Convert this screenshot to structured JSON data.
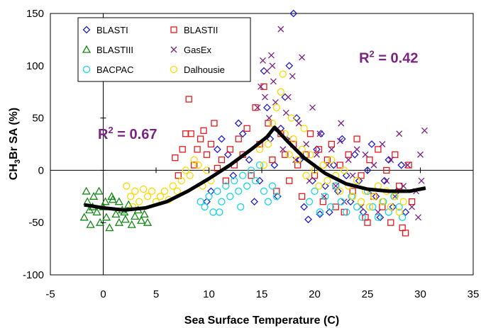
{
  "chart_data": {
    "type": "scatter",
    "xlabel": "Sea Surface Temperature (C)",
    "ylabel": {
      "pre": "CH",
      "sub": "3",
      "post": "Br SA (%)"
    },
    "xlim": [
      -5,
      35
    ],
    "ylim": [
      -100,
      150
    ],
    "xticks": [
      -5,
      0,
      5,
      10,
      15,
      20,
      25,
      30,
      35
    ],
    "yticks": [
      -100,
      -50,
      0,
      50,
      100,
      150
    ],
    "xtick_labels": [
      "-5",
      "0",
      "5",
      "10",
      "15",
      "20",
      "25",
      "30",
      "35"
    ],
    "ytick_labels": [
      "-100",
      "-50",
      "0",
      "50",
      "100",
      "150"
    ],
    "grid": false,
    "legend_position": "top-left",
    "annotations": [
      {
        "pre": "R",
        "sup": "2",
        "post": " = 0.67",
        "x": -0.5,
        "y": 30,
        "color": "#7b2382"
      },
      {
        "pre": "R",
        "sup": "2",
        "post": " = 0.42",
        "x": 24.2,
        "y": 103,
        "color": "#7b2382"
      }
    ],
    "series": [
      {
        "name": "BLASTI",
        "marker": "diamond",
        "color": "#1f1fcf",
        "values": [
          [
            9.8,
            -30
          ],
          [
            10.2,
            -20
          ],
          [
            10.8,
            20
          ],
          [
            11.2,
            30
          ],
          [
            11.8,
            15
          ],
          [
            12.3,
            -5
          ],
          [
            12.8,
            45
          ],
          [
            13.2,
            35
          ],
          [
            13.8,
            10
          ],
          [
            14.3,
            -30
          ],
          [
            14.8,
            -10
          ],
          [
            15.2,
            95
          ],
          [
            15.5,
            60
          ],
          [
            15.8,
            30
          ],
          [
            16.2,
            5
          ],
          [
            16.5,
            -25
          ],
          [
            16.8,
            40
          ],
          [
            17.2,
            70
          ],
          [
            17.6,
            100
          ],
          [
            18.0,
            150
          ],
          [
            18.3,
            50
          ],
          [
            18.6,
            10
          ],
          [
            19.0,
            -35
          ],
          [
            19.4,
            -47
          ],
          [
            19.8,
            -10
          ],
          [
            20.2,
            20
          ],
          [
            20.6,
            35
          ],
          [
            21.0,
            -15
          ],
          [
            21.4,
            -40
          ],
          [
            21.8,
            5
          ],
          [
            22.2,
            -20
          ],
          [
            22.6,
            30
          ],
          [
            23.0,
            -5
          ],
          [
            23.4,
            -30
          ],
          [
            23.8,
            15
          ],
          [
            24.2,
            -10
          ],
          [
            24.6,
            -40
          ],
          [
            25.0,
            0
          ],
          [
            25.4,
            25
          ],
          [
            25.8,
            -25
          ],
          [
            26.2,
            -45
          ],
          [
            26.6,
            -10
          ],
          [
            27.0,
            10
          ],
          [
            27.4,
            -35
          ],
          [
            27.8,
            -20
          ],
          [
            28.2,
            5
          ],
          [
            28.6,
            -40
          ],
          [
            20.5,
            -42
          ]
        ]
      },
      {
        "name": "BLASTII",
        "marker": "square",
        "color": "#e8191b",
        "values": [
          [
            6.8,
            12
          ],
          [
            7.1,
            -5
          ],
          [
            7.5,
            20
          ],
          [
            7.8,
            35
          ],
          [
            8.1,
            68
          ],
          [
            8.3,
            35
          ],
          [
            8.6,
            5
          ],
          [
            8.9,
            20
          ],
          [
            9.2,
            30
          ],
          [
            9.5,
            38
          ],
          [
            9.8,
            15
          ],
          [
            10.2,
            25
          ],
          [
            10.5,
            45
          ],
          [
            10.8,
            2
          ],
          [
            11.2,
            10
          ],
          [
            11.6,
            -10
          ],
          [
            12.0,
            20
          ],
          [
            12.4,
            5
          ],
          [
            12.8,
            30
          ],
          [
            13.2,
            15
          ],
          [
            13.6,
            40
          ],
          [
            14.0,
            -5
          ],
          [
            14.4,
            60
          ],
          [
            14.8,
            25
          ],
          [
            15.2,
            80
          ],
          [
            15.6,
            45
          ],
          [
            16.0,
            10
          ],
          [
            16.4,
            -20
          ],
          [
            16.8,
            35
          ],
          [
            17.2,
            15
          ],
          [
            17.6,
            -10
          ],
          [
            18.0,
            25
          ],
          [
            18.4,
            5
          ],
          [
            18.8,
            -25
          ],
          [
            19.2,
            15
          ],
          [
            19.6,
            35
          ],
          [
            20.0,
            -5
          ],
          [
            20.4,
            20
          ],
          [
            20.8,
            -30
          ],
          [
            21.2,
            10
          ],
          [
            21.6,
            25
          ],
          [
            22.0,
            -15
          ],
          [
            22.4,
            5
          ],
          [
            22.8,
            -40
          ],
          [
            23.2,
            15
          ],
          [
            23.6,
            -20
          ],
          [
            24.0,
            30
          ],
          [
            24.4,
            -5
          ],
          [
            24.8,
            -45
          ],
          [
            25.2,
            10
          ],
          [
            25.6,
            -25
          ],
          [
            26.0,
            20
          ],
          [
            26.4,
            -35
          ],
          [
            26.8,
            0
          ],
          [
            27.2,
            -50
          ],
          [
            27.6,
            15
          ],
          [
            28.0,
            -15
          ],
          [
            28.3,
            -55
          ],
          [
            28.6,
            -60
          ],
          [
            28.9,
            5
          ],
          [
            29.2,
            -30
          ],
          [
            25.0,
            -50
          ],
          [
            22.0,
            -35
          ]
        ]
      },
      {
        "name": "BLASTIII",
        "marker": "triangle",
        "color": "#138a13",
        "values": [
          [
            -1.8,
            -45
          ],
          [
            -1.5,
            -30
          ],
          [
            -1.2,
            -52
          ],
          [
            -0.9,
            -25
          ],
          [
            -0.6,
            -40
          ],
          [
            -0.3,
            -50
          ],
          [
            0.0,
            -35
          ],
          [
            0.3,
            -45
          ],
          [
            0.6,
            -55
          ],
          [
            0.9,
            -28
          ],
          [
            1.2,
            -42
          ],
          [
            1.5,
            -50
          ],
          [
            1.8,
            -38
          ],
          [
            2.1,
            -47
          ],
          [
            2.4,
            -33
          ],
          [
            2.7,
            -52
          ],
          [
            3.0,
            -44
          ],
          [
            3.3,
            -38
          ],
          [
            3.6,
            -48
          ],
          [
            3.9,
            -42
          ],
          [
            4.2,
            -50
          ],
          [
            -1.6,
            -20
          ],
          [
            -1.0,
            -35
          ],
          [
            -0.4,
            -20
          ],
          [
            0.8,
            -25
          ],
          [
            1.5,
            -30
          ],
          [
            -1.3,
            -38
          ],
          [
            0.2,
            -30
          ],
          [
            2.0,
            -40
          ]
        ]
      },
      {
        "name": "GasEx",
        "marker": "cross",
        "color": "#7b2382",
        "values": [
          [
            14.6,
            60
          ],
          [
            14.9,
            80
          ],
          [
            15.1,
            105
          ],
          [
            15.3,
            70
          ],
          [
            15.5,
            95
          ],
          [
            15.7,
            50
          ],
          [
            15.9,
            110
          ],
          [
            16.1,
            85
          ],
          [
            16.3,
            65
          ],
          [
            16.5,
            40
          ],
          [
            16.8,
            135
          ],
          [
            17.0,
            20
          ],
          [
            17.3,
            55
          ],
          [
            17.6,
            30
          ],
          [
            17.9,
            90
          ],
          [
            18.2,
            10
          ],
          [
            18.5,
            45
          ],
          [
            18.8,
            108
          ],
          [
            19.2,
            25
          ],
          [
            19.5,
            -10
          ],
          [
            19.8,
            60
          ],
          [
            20.2,
            15
          ],
          [
            20.5,
            35
          ],
          [
            20.9,
            -25
          ],
          [
            21.2,
            5
          ],
          [
            21.6,
            20
          ],
          [
            22.0,
            -15
          ],
          [
            22.4,
            28
          ],
          [
            22.8,
            -30
          ],
          [
            23.2,
            10
          ],
          [
            23.6,
            -5
          ],
          [
            24.0,
            20
          ],
          [
            24.4,
            -35
          ],
          [
            24.8,
            15
          ],
          [
            25.2,
            -20
          ],
          [
            25.6,
            5
          ],
          [
            26.0,
            -40
          ],
          [
            26.4,
            25
          ],
          [
            26.8,
            -10
          ],
          [
            27.2,
            10
          ],
          [
            27.6,
            -25
          ],
          [
            28.0,
            35
          ],
          [
            28.4,
            -15
          ],
          [
            28.8,
            5
          ],
          [
            29.2,
            -35
          ],
          [
            29.6,
            -20
          ],
          [
            30.0,
            15
          ],
          [
            30.4,
            38
          ],
          [
            30.1,
            -10
          ],
          [
            29.8,
            -45
          ],
          [
            22.5,
            45
          ],
          [
            17.5,
            70
          ],
          [
            16.0,
            100
          ]
        ]
      },
      {
        "name": "BACPAC",
        "marker": "circle",
        "color": "#19d5e6",
        "values": [
          [
            9.2,
            -30
          ],
          [
            9.6,
            -35
          ],
          [
            10.0,
            -25
          ],
          [
            10.4,
            -40
          ],
          [
            10.8,
            -20
          ],
          [
            11.2,
            -30
          ],
          [
            11.6,
            -15
          ],
          [
            12.0,
            -25
          ],
          [
            12.4,
            -10
          ],
          [
            12.8,
            -20
          ],
          [
            13.2,
            -5
          ],
          [
            13.6,
            -15
          ],
          [
            14.0,
            0
          ],
          [
            14.4,
            -10
          ],
          [
            14.8,
            5
          ],
          [
            15.2,
            -20
          ],
          [
            15.6,
            -30
          ],
          [
            16.0,
            -15
          ],
          [
            16.4,
            -25
          ],
          [
            19.5,
            -30
          ],
          [
            20.0,
            -20
          ],
          [
            20.5,
            -40
          ],
          [
            21.0,
            -25
          ],
          [
            21.5,
            -35
          ],
          [
            22.0,
            -15
          ],
          [
            22.5,
            -30
          ],
          [
            23.0,
            -40
          ],
          [
            23.5,
            -25
          ],
          [
            24.0,
            -35
          ],
          [
            24.5,
            -45
          ],
          [
            25.0,
            -20
          ],
          [
            25.5,
            -35
          ],
          [
            26.0,
            -45
          ],
          [
            26.5,
            -30
          ],
          [
            27.0,
            -40
          ],
          [
            27.5,
            -25
          ],
          [
            28.0,
            -35
          ],
          [
            28.3,
            -45
          ],
          [
            11.0,
            -40
          ],
          [
            13.0,
            -35
          ]
        ]
      },
      {
        "name": "Dalhousie",
        "marker": "circle",
        "color": "#ffd800",
        "values": [
          [
            2.2,
            -15
          ],
          [
            2.6,
            -25
          ],
          [
            3.0,
            -20
          ],
          [
            3.4,
            -30
          ],
          [
            3.8,
            -18
          ],
          [
            4.2,
            -25
          ],
          [
            4.6,
            -20
          ],
          [
            5.0,
            -30
          ],
          [
            5.4,
            -25
          ],
          [
            5.8,
            -20
          ],
          [
            6.2,
            -28
          ],
          [
            6.6,
            -15
          ],
          [
            7.0,
            -20
          ],
          [
            7.4,
            -10
          ],
          [
            7.8,
            0
          ],
          [
            8.2,
            -5
          ],
          [
            8.6,
            10
          ],
          [
            9.0,
            5
          ],
          [
            9.4,
            -15
          ],
          [
            9.8,
            0
          ],
          [
            10.2,
            -10
          ],
          [
            14.8,
            20
          ],
          [
            15.2,
            5
          ],
          [
            15.6,
            25
          ],
          [
            16.0,
            45
          ],
          [
            16.4,
            60
          ],
          [
            16.8,
            75
          ],
          [
            17.0,
            92
          ],
          [
            17.2,
            35
          ],
          [
            17.6,
            15
          ],
          [
            18.0,
            30
          ],
          [
            18.4,
            10
          ],
          [
            18.8,
            20
          ],
          [
            19.2,
            -5
          ],
          [
            19.6,
            15
          ],
          [
            20.0,
            0
          ],
          [
            20.4,
            -15
          ],
          [
            20.8,
            5
          ],
          [
            21.2,
            -10
          ],
          [
            21.6,
            10
          ],
          [
            22.0,
            -5
          ],
          [
            22.4,
            -20
          ],
          [
            22.8,
            0
          ],
          [
            23.2,
            -15
          ],
          [
            23.6,
            -25
          ],
          [
            24.0,
            -10
          ],
          [
            24.4,
            -30
          ],
          [
            24.8,
            -20
          ],
          [
            25.2,
            -35
          ],
          [
            25.6,
            -25
          ],
          [
            26.0,
            -15
          ],
          [
            26.4,
            -30
          ],
          [
            26.8,
            -20
          ],
          [
            27.2,
            -35
          ],
          [
            27.6,
            -25
          ],
          [
            28.0,
            -40
          ],
          [
            28.4,
            -30
          ],
          [
            19.0,
            40
          ],
          [
            17.8,
            50
          ],
          [
            2.8,
            -35
          ]
        ]
      }
    ],
    "fit_curve": [
      [
        -1.8,
        -33
      ],
      [
        0.0,
        -36
      ],
      [
        2.0,
        -38
      ],
      [
        4.0,
        -36
      ],
      [
        6.0,
        -30
      ],
      [
        8.0,
        -20
      ],
      [
        10.0,
        -8
      ],
      [
        12.0,
        5
      ],
      [
        14.0,
        20
      ],
      [
        15.5,
        32
      ],
      [
        16.2,
        41
      ],
      [
        17.5,
        27
      ],
      [
        19.0,
        12
      ],
      [
        21.0,
        -3
      ],
      [
        23.0,
        -13
      ],
      [
        25.0,
        -18
      ],
      [
        27.0,
        -20
      ],
      [
        29.0,
        -20
      ],
      [
        30.5,
        -17
      ]
    ]
  }
}
